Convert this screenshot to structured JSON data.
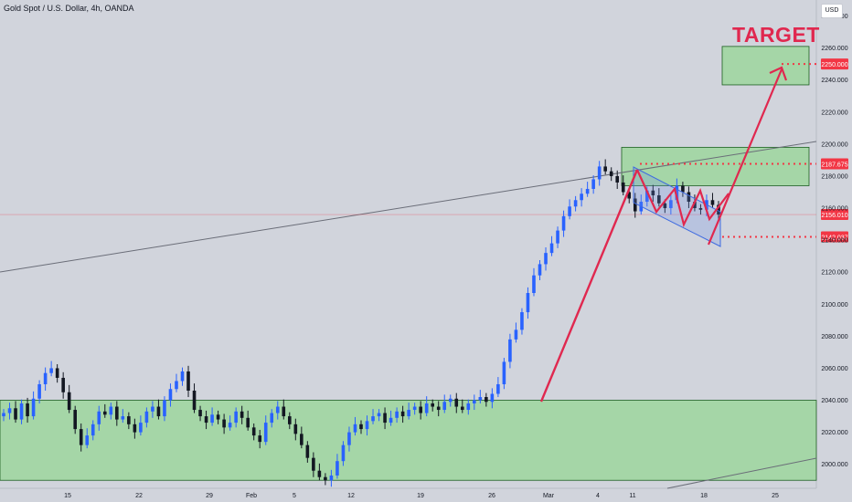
{
  "header": {
    "title": "Gold Spot / U.S. Dollar, 4h, OANDA",
    "currency": "USD"
  },
  "annotations": {
    "target_label": "TARGET"
  },
  "colors": {
    "background": "#d1d4dc",
    "zone_fill": "#a5d6a7",
    "zone_stroke": "#1b5e20",
    "up_candle": "#2962ff",
    "down_candle": "#131722",
    "arrow": "#e0284f",
    "channel": "#3f6be0",
    "badge": "#f23645",
    "trendline": "#6a6d78"
  },
  "chart_data": {
    "type": "candlestick",
    "symbol": "Gold Spot / U.S. Dollar",
    "timeframe": "4h",
    "exchange": "OANDA",
    "x_ticks": [
      "15",
      "22",
      "29",
      "Feb",
      "5",
      "12",
      "19",
      "26",
      "Mar",
      "4",
      "11",
      "18",
      "25"
    ],
    "y_ticks": [
      2000,
      2020,
      2040,
      2060,
      2080,
      2100,
      2120,
      2140,
      2160,
      2180,
      2200,
      2220,
      2240,
      2260,
      2280
    ],
    "ylim": [
      1985,
      2290
    ],
    "price_labels": [
      {
        "value": 2250.0,
        "text": "2250.000",
        "style": "dotted"
      },
      {
        "value": 2187.675,
        "text": "2187.675",
        "style": "dotted"
      },
      {
        "value": 2156.01,
        "text": "2156.010",
        "style": "current"
      },
      {
        "value": 2142.037,
        "text": "2142.037",
        "style": "dotted"
      }
    ],
    "zones": [
      {
        "name": "support",
        "from": 1990,
        "to": 2040
      },
      {
        "name": "resistance",
        "from": 2174,
        "to": 2198
      },
      {
        "name": "target",
        "from": 2237,
        "to": 2261
      }
    ],
    "closes": [
      2032,
      2035,
      2028,
      2038,
      2030,
      2041,
      2050,
      2057,
      2060,
      2054,
      2045,
      2034,
      2022,
      2012,
      2018,
      2025,
      2033,
      2031,
      2036,
      2028,
      2030,
      2025,
      2020,
      2026,
      2033,
      2036,
      2030,
      2040,
      2047,
      2052,
      2058,
      2046,
      2034,
      2030,
      2026,
      2031,
      2028,
      2023,
      2026,
      2033,
      2029,
      2023,
      2018,
      2014,
      2026,
      2032,
      2036,
      2030,
      2025,
      2019,
      2012,
      2004,
      1996,
      1992,
      1990,
      1993,
      2002,
      2012,
      2020,
      2025,
      2022,
      2027,
      2030,
      2032,
      2026,
      2029,
      2033,
      2030,
      2034,
      2036,
      2032,
      2038,
      2036,
      2034,
      2039,
      2041,
      2036,
      2034,
      2038,
      2040,
      2042,
      2039,
      2044,
      2050,
      2064,
      2078,
      2084,
      2095,
      2107,
      2118,
      2125,
      2132,
      2138,
      2146,
      2155,
      2161,
      2165,
      2169,
      2172,
      2178,
      2186,
      2183,
      2180,
      2176,
      2170,
      2166,
      2158,
      2164,
      2171,
      2168,
      2163,
      2160,
      2165,
      2174,
      2170,
      2164,
      2160,
      2159,
      2165,
      2162,
      2156
    ]
  }
}
